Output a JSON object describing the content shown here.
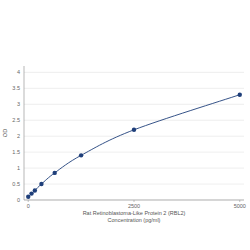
{
  "chart_data": {
    "type": "line",
    "marker": "circle",
    "color": "#1f3f7a",
    "grid": true,
    "x_label": [
      "Rat Retinoblastoma-Like Protein 2 (RBL2)",
      "Concentration (pg/ml)"
    ],
    "y_label": "OD",
    "x": [
      0,
      78.13,
      156.25,
      312.5,
      625,
      1250,
      2500,
      5000
    ],
    "values": [
      0.1,
      0.2,
      0.3,
      0.5,
      0.85,
      1.4,
      2.2,
      3.3
    ],
    "xlim": [
      -100,
      5100
    ],
    "xticks": [
      0,
      2500,
      5000
    ],
    "ylim": [
      0,
      4.2
    ],
    "yticks": [
      0,
      0.5,
      1,
      1.5,
      2,
      2.5,
      3,
      3.5,
      4
    ]
  }
}
